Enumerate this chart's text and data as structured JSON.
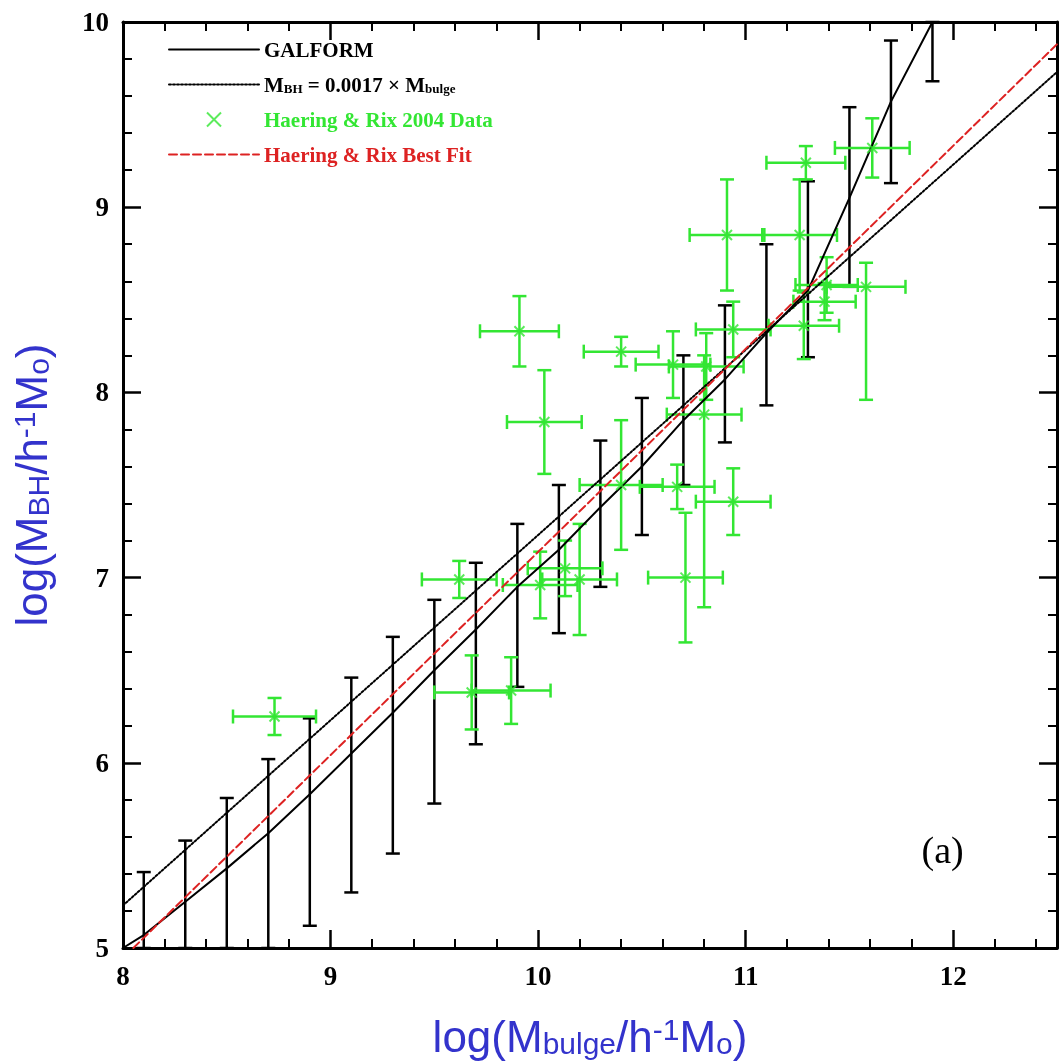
{
  "chart_data": {
    "type": "line",
    "xlabel": "log(M$_{bulge}$/h$^{-1}$M$_{o}$)",
    "ylabel": "log(M$_{BH}$/h$^{-1}$M$_{o}$)",
    "xlim": [
      8,
      12.5
    ],
    "ylim": [
      5,
      10
    ],
    "xticks": [
      8,
      9,
      10,
      11,
      12
    ],
    "yticks": [
      5,
      6,
      7,
      8,
      9,
      10
    ],
    "legend": "top left",
    "annotations": [
      "(a)"
    ],
    "series": [
      {
        "name": "GALFORM",
        "color": "#000000",
        "line_style": "solid",
        "marker": "none",
        "x": [
          8.0,
          8.1,
          8.3,
          8.5,
          8.7,
          8.9,
          9.1,
          9.3,
          9.5,
          9.7,
          9.9,
          10.1,
          10.3,
          10.5,
          10.7,
          10.9,
          11.1,
          11.3,
          11.5,
          11.7,
          11.9
        ],
        "values": [
          5.0,
          5.07,
          5.25,
          5.43,
          5.62,
          5.83,
          6.05,
          6.27,
          6.5,
          6.72,
          6.95,
          7.15,
          7.38,
          7.6,
          7.85,
          8.07,
          8.32,
          8.55,
          9.05,
          9.57,
          10.0
        ],
        "errors": [
          null,
          [
            5,
            5.41
          ],
          [
            5,
            5.58
          ],
          [
            5,
            5.81
          ],
          [
            5,
            6.02
          ],
          [
            5.12,
            6.24
          ],
          [
            5.3,
            6.46
          ],
          [
            5.51,
            6.68
          ],
          [
            5.78,
            6.88
          ],
          [
            6.1,
            7.08
          ],
          [
            6.41,
            7.29
          ],
          [
            6.7,
            7.5
          ],
          [
            6.95,
            7.74
          ],
          [
            7.23,
            7.97
          ],
          [
            7.5,
            8.2
          ],
          [
            7.73,
            8.47
          ],
          [
            7.93,
            8.8
          ],
          [
            8.19,
            9.14
          ],
          [
            8.57,
            9.54
          ],
          [
            9.13,
            9.9
          ],
          [
            9.68,
            10
          ]
        ]
      },
      {
        "name": "M$_{BH}$ = 0.0017 × M$_{bulge}$",
        "color": "#000000",
        "line_style": "dotted",
        "marker": "none",
        "x": [
          8,
          12.5
        ],
        "values": [
          5.23,
          9.73
        ]
      },
      {
        "name": "Haering & Rix 2004 Data",
        "type": "scatter",
        "color": "#33e633",
        "marker": "cross",
        "x": [
          8.73,
          9.62,
          9.68,
          9.87,
          9.91,
          10.01,
          10.03,
          10.13,
          10.2,
          10.4,
          10.4,
          10.65,
          10.67,
          10.71,
          10.8,
          10.81,
          10.91,
          10.94,
          10.94,
          11.26,
          11.29,
          11.28,
          11.39,
          11.38,
          11.58,
          11.61
        ],
        "values": [
          6.25,
          6.99,
          6.38,
          6.39,
          8.33,
          6.96,
          7.84,
          7.05,
          6.99,
          8.22,
          7.5,
          8.15,
          7.49,
          7.0,
          7.88,
          8.14,
          8.85,
          8.34,
          7.41,
          8.85,
          9.24,
          8.36,
          8.58,
          8.49,
          8.57,
          9.32
        ],
        "errors": [
          0.1,
          0.1,
          0.2,
          0.18,
          0.19,
          0.18,
          0.28,
          0.15,
          0.3,
          0.08,
          0.35,
          0.18,
          0.12,
          0.35,
          [
            6.84,
            8.2
          ],
          0.18,
          0.3,
          0.15,
          0.18,
          0.3,
          0.09,
          0.18,
          0.15,
          0.1,
          [
            7.96,
            8.7
          ],
          0.16
        ],
        "xerrors": [
          0.2,
          0.18,
          0.18,
          0.19,
          0.19,
          0.18,
          0.18,
          0.18,
          0.18,
          0.18,
          0.2,
          0.18,
          0.18,
          0.18,
          0.18,
          0.18,
          0.18,
          0.18,
          0.18,
          0.18,
          0.19,
          0.17,
          0.15,
          0.15,
          0.19,
          0.18
        ]
      },
      {
        "name": "Haering & Rix Best Fit",
        "color": "#dd2222",
        "line_style": "dashed",
        "marker": "none",
        "x": [
          8.05,
          12.5
        ],
        "values": [
          5.0,
          9.88
        ]
      }
    ]
  }
}
